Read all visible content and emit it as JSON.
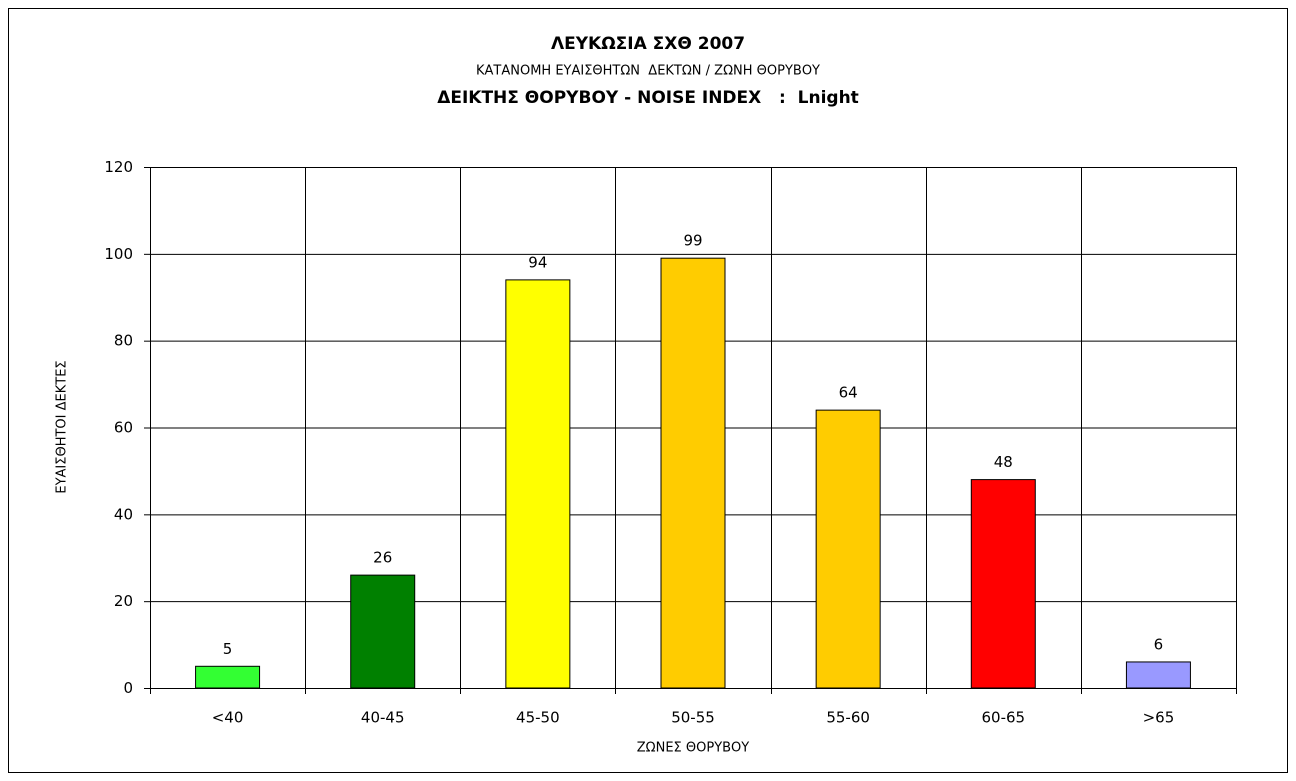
{
  "chart_data": {
    "type": "bar",
    "title": "ΛΕΥΚΩΣΙΑ ΣΧΘ 2007",
    "subtitles": [
      "ΚΑΤΑΝΟΜΗ ΕΥΑΙΣΘΗΤΩΝ  ΔΕΚΤΩΝ / ΖΩΝΗ ΘΟΡΥΒΟΥ",
      "ΔΕΙΚΤΗΣ ΘΟΡΥΒΟΥ - NOISE INDEX   :  Lnight"
    ],
    "x_label": "ΖΩΝΕΣ ΘΟΡΥΒΟΥ",
    "y_label": "ΕΥΑΙΣΘΗΤΟΙ ΔΕΚΤΕΣ",
    "categories": [
      "<40",
      "40-45",
      "45-50",
      "50-55",
      "55-60",
      "60-65",
      ">65"
    ],
    "values": [
      5,
      26,
      94,
      99,
      64,
      48,
      6
    ],
    "colors": [
      "#33ff33",
      "#008000",
      "#ffff00",
      "#ffcc00",
      "#ffcc00",
      "#ff0000",
      "#9999ff"
    ],
    "ylim": [
      0,
      120
    ],
    "yticks": [
      0,
      20,
      40,
      60,
      80,
      100,
      120
    ],
    "grid": true
  }
}
